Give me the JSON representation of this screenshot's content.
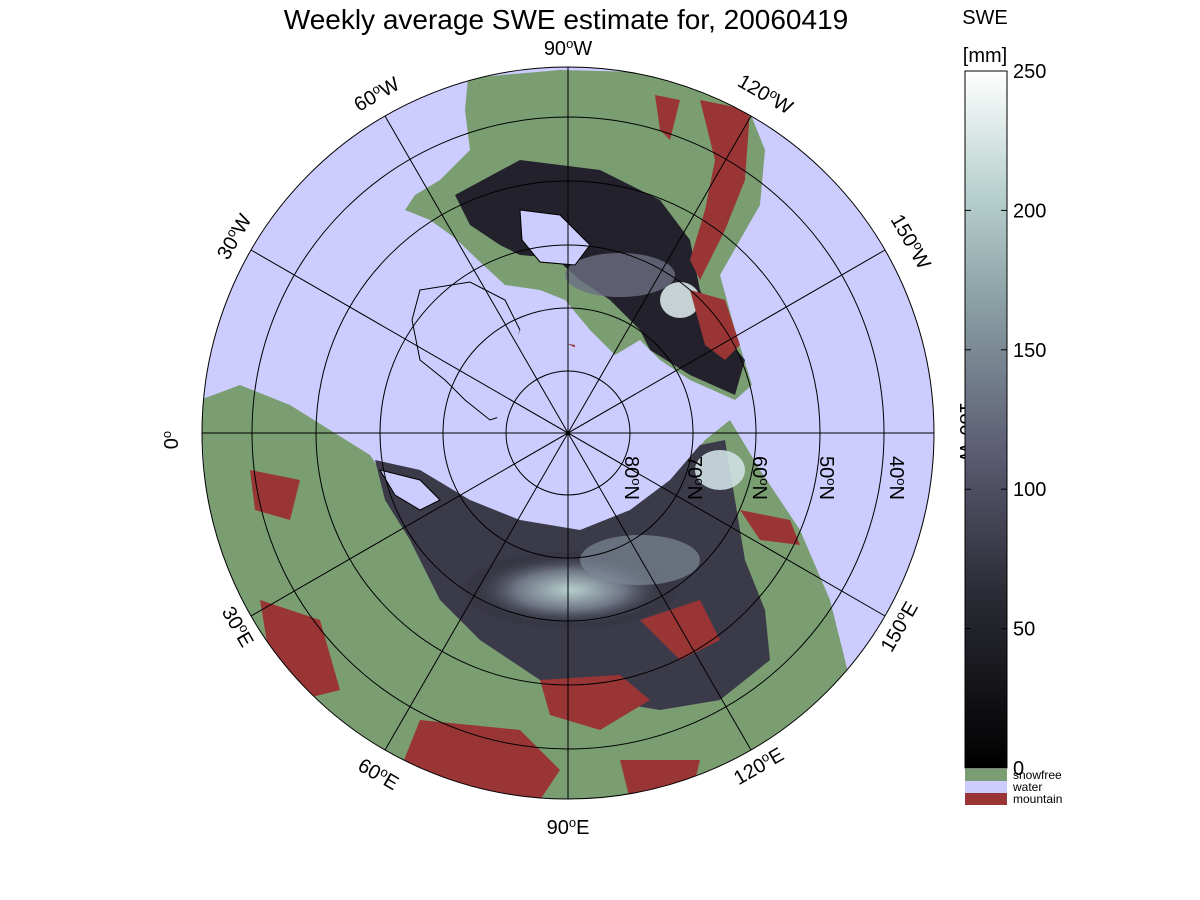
{
  "title": "Weekly average SWE estimate for, 20060419",
  "colorbar": {
    "title_line1": "SWE",
    "title_line2": "[mm]",
    "ticks": [
      {
        "value": 0,
        "label": "0"
      },
      {
        "value": 50,
        "label": "50"
      },
      {
        "value": 100,
        "label": "100"
      },
      {
        "value": 150,
        "label": "150"
      },
      {
        "value": 200,
        "label": "200"
      },
      {
        "value": 250,
        "label": "250"
      }
    ],
    "min": 0,
    "max": 250
  },
  "legend": [
    {
      "label": "snowfree",
      "color": "#7a9e72"
    },
    {
      "label": "water",
      "color": "#ccccff"
    },
    {
      "label": "mountain",
      "color": "#9a3535"
    }
  ],
  "meridians": [
    {
      "label": "0",
      "sup": "o",
      "suffix": ""
    },
    {
      "label": "30",
      "sup": "o",
      "suffix": "W"
    },
    {
      "label": "60",
      "sup": "o",
      "suffix": "W"
    },
    {
      "label": "90",
      "sup": "o",
      "suffix": "W"
    },
    {
      "label": "120",
      "sup": "o",
      "suffix": "W"
    },
    {
      "label": "150",
      "sup": "o",
      "suffix": "W"
    },
    {
      "label": "180",
      "sup": "o",
      "suffix": "W"
    },
    {
      "label": "150",
      "sup": "o",
      "suffix": "E"
    },
    {
      "label": "120",
      "sup": "o",
      "suffix": "E"
    },
    {
      "label": "90",
      "sup": "o",
      "suffix": "E"
    },
    {
      "label": "60",
      "sup": "o",
      "suffix": "E"
    },
    {
      "label": "30",
      "sup": "o",
      "suffix": "E"
    }
  ],
  "parallels": [
    {
      "label": "80",
      "sup": "o",
      "suffix": "N"
    },
    {
      "label": "70",
      "sup": "o",
      "suffix": "N"
    },
    {
      "label": "60",
      "sup": "o",
      "suffix": "N"
    },
    {
      "label": "50",
      "sup": "o",
      "suffix": "N"
    },
    {
      "label": "40",
      "sup": "o",
      "suffix": "N"
    }
  ],
  "colors": {
    "water": "#ccccff",
    "snowfree": "#7a9e72",
    "mountain": "#9a3535",
    "snow_dark": "#0d0c12",
    "snow_mid": "#4a4a60",
    "snow_light": "#a9c5c3"
  }
}
